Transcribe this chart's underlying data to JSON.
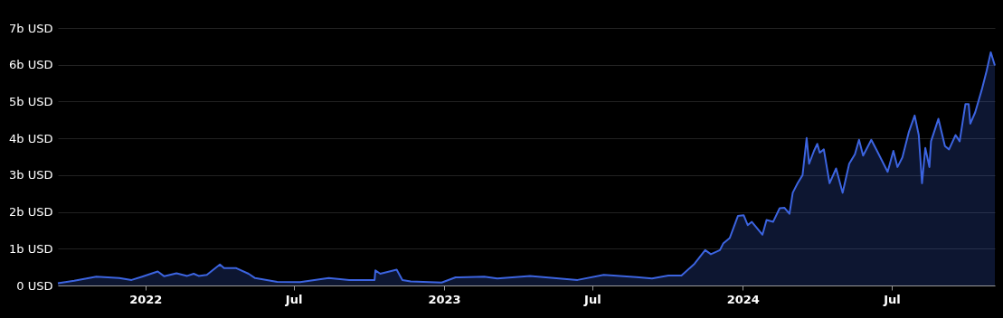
{
  "chart_data": {
    "type": "area",
    "x": [
      "2021-09-16",
      "2021-10-06",
      "2021-11-02",
      "2021-11-30",
      "2021-12-15",
      "2021-12-28",
      "2022-01-16",
      "2022-01-24",
      "2022-02-08",
      "2022-02-21",
      "2022-03-01",
      "2022-03-07",
      "2022-03-17",
      "2022-04-02",
      "2022-04-07",
      "2022-04-22",
      "2022-05-07",
      "2022-05-15",
      "2022-06-11",
      "2022-07-09",
      "2022-08-13",
      "2022-09-07",
      "2022-10-08",
      "2022-10-09",
      "2022-10-15",
      "2022-11-04",
      "2022-11-11",
      "2022-11-21",
      "2022-12-29",
      "2023-01-15",
      "2023-02-19",
      "2023-03-07",
      "2023-04-16",
      "2023-06-13",
      "2023-07-15",
      "2023-08-24",
      "2023-09-12",
      "2023-10-02",
      "2023-10-18",
      "2023-11-03",
      "2023-11-16",
      "2023-11-23",
      "2023-12-04",
      "2023-12-08",
      "2023-12-16",
      "2023-12-26",
      "2024-01-02",
      "2024-01-07",
      "2024-01-12",
      "2024-01-25",
      "2024-01-30",
      "2024-02-07",
      "2024-02-15",
      "2024-02-21",
      "2024-02-27",
      "2024-03-02",
      "2024-03-08",
      "2024-03-14",
      "2024-03-19",
      "2024-03-22",
      "2024-03-28",
      "2024-04-01",
      "2024-04-04",
      "2024-04-09",
      "2024-04-16",
      "2024-04-24",
      "2024-05-02",
      "2024-05-10",
      "2024-05-17",
      "2024-05-22",
      "2024-05-27",
      "2024-06-06",
      "2024-06-13",
      "2024-06-26",
      "2024-07-03",
      "2024-07-08",
      "2024-07-14",
      "2024-07-22",
      "2024-07-29",
      "2024-08-03",
      "2024-08-07",
      "2024-08-11",
      "2024-08-16",
      "2024-08-18",
      "2024-08-27",
      "2024-09-04",
      "2024-09-09",
      "2024-09-17",
      "2024-09-22",
      "2024-09-29",
      "2024-10-03",
      "2024-10-05",
      "2024-10-11",
      "2024-10-19",
      "2024-10-25",
      "2024-10-30",
      "2024-11-04"
    ],
    "series": [
      {
        "color": "#3c64e0",
        "values": [
          0.06,
          0.13,
          0.24,
          0.2,
          0.15,
          0.24,
          0.38,
          0.25,
          0.33,
          0.26,
          0.32,
          0.26,
          0.29,
          0.57,
          0.47,
          0.47,
          0.32,
          0.2,
          0.1,
          0.09,
          0.2,
          0.15,
          0.15,
          0.41,
          0.32,
          0.43,
          0.15,
          0.11,
          0.08,
          0.22,
          0.24,
          0.19,
          0.26,
          0.15,
          0.29,
          0.23,
          0.19,
          0.27,
          0.27,
          0.59,
          0.96,
          0.85,
          0.96,
          1.14,
          1.29,
          1.89,
          1.91,
          1.64,
          1.73,
          1.38,
          1.78,
          1.73,
          2.1,
          2.11,
          1.95,
          2.52,
          2.78,
          3.0,
          4.01,
          3.31,
          3.66,
          3.85,
          3.61,
          3.7,
          2.78,
          3.18,
          2.52,
          3.31,
          3.57,
          3.96,
          3.53,
          3.96,
          3.66,
          3.09,
          3.66,
          3.22,
          3.48,
          4.18,
          4.62,
          4.09,
          2.78,
          3.74,
          3.22,
          3.92,
          4.53,
          3.79,
          3.7,
          4.09,
          3.92,
          4.93,
          4.93,
          4.4,
          4.71,
          5.32,
          5.84,
          6.34,
          5.98
        ]
      }
    ],
    "xlim": [
      "2021-09-16",
      "2024-11-04"
    ],
    "xticks": [
      {
        "value": "2022-01-01",
        "label": "2022"
      },
      {
        "value": "2022-07-01",
        "label": "Jul"
      },
      {
        "value": "2023-01-01",
        "label": "2023"
      },
      {
        "value": "2023-07-01",
        "label": "Jul"
      },
      {
        "value": "2024-01-01",
        "label": "2024"
      },
      {
        "value": "2024-07-01",
        "label": "Jul"
      }
    ],
    "ylim": [
      0,
      7
    ],
    "yticks": [
      {
        "value": 0,
        "label": "0 USD"
      },
      {
        "value": 1,
        "label": "1b USD"
      },
      {
        "value": 2,
        "label": "2b USD"
      },
      {
        "value": 3,
        "label": "3b USD"
      },
      {
        "value": 4,
        "label": "4b USD"
      },
      {
        "value": 5,
        "label": "5b USD"
      },
      {
        "value": 6,
        "label": "6b USD"
      },
      {
        "value": 7,
        "label": "7b USD"
      }
    ],
    "grid": "y"
  }
}
